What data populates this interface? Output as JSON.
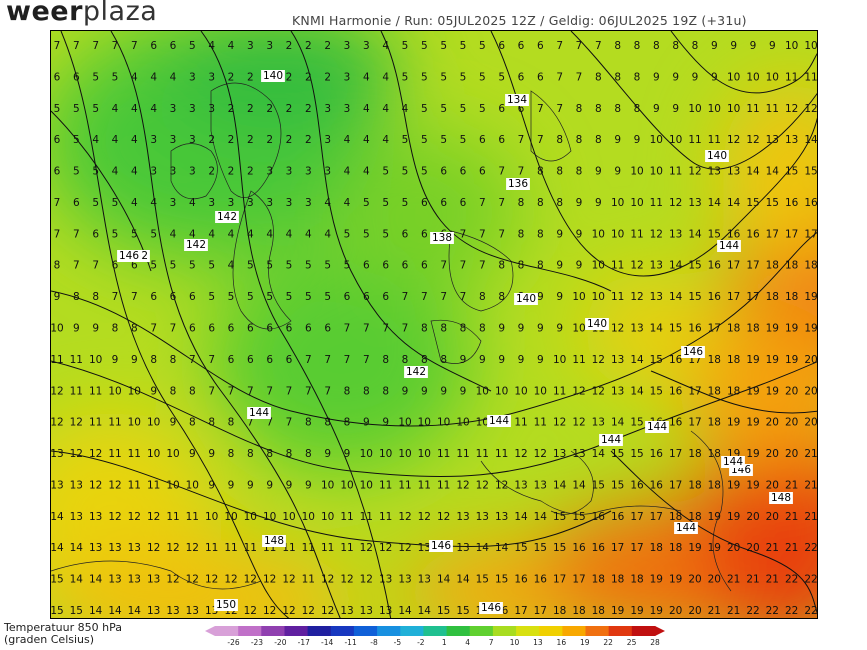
{
  "header": {
    "brand_bold": "weer",
    "brand_light": "plaza",
    "run_info": "KNMI Harmonie / Run: 05JUL2025 12Z / Geldig: 06JUL2025 19Z (+31u)"
  },
  "legend": {
    "line1": "Temperatuur 850 hPa",
    "line2": "(graden Celsius)",
    "ticks": [
      "-26",
      "-23",
      "-20",
      "-17",
      "-14",
      "-11",
      "-8",
      "-5",
      "-2",
      "1",
      "4",
      "7",
      "10",
      "13",
      "16",
      "19",
      "22",
      "25",
      "28"
    ],
    "colors": [
      "#d8a0d8",
      "#c070c8",
      "#9040b0",
      "#6020a0",
      "#2020a0",
      "#1838c0",
      "#1060d8",
      "#1890e0",
      "#20b0d8",
      "#20c090",
      "#30c040",
      "#60d030",
      "#a8dc20",
      "#d8e010",
      "#f0d000",
      "#f8a800",
      "#f07010",
      "#e03810",
      "#c01010"
    ]
  },
  "contours": {
    "labels": [
      "140",
      "134",
      "136",
      "138",
      "140",
      "140",
      "142",
      "142",
      "142",
      "146",
      "144",
      "144",
      "142",
      "144",
      "144",
      "146",
      "148",
      "146",
      "146",
      "150",
      "144",
      "144",
      "140",
      "144",
      "146",
      "148"
    ]
  },
  "temperature_field": {
    "rows": [
      "7 7 7 7 7 6 6 5 4 4 3 3 2 2 2 3 3 4 5 5 5 5 5 6 6 6 7 7 7 8 8 8 8 8 9 9 9 9 10 10",
      "6 6 5 5 4 4 4 3 3 2 2 2 2 2 2 3 4 4 5 5 5 5 5 5 6 6 7 7 8 8 8 9 9 9 9 10 10 10 11 11",
      "5 5 5 4 4 4 3 3 3 2 2 2 2 2 3 3 4 4 4 5 5 5 5 6 6 7 7 8 8 8 8 9 9 10 10 10 11 11 12 12",
      "6 5 4 4 4 3 3 3 2 2 2 2 2 2 3 4 4 4 5 5 5 5 6 6 7 7 8 8 8 9 9 10 10 11 11 12 12 13 13 14",
      "6 5 5 4 4 3 3 3 2 2 2 3 3 3 3 4 4 5 5 5 6 6 6 7 7 8 8 8 9 9 10 10 11 12 13 13 14 14 15 15",
      "7 6 5 5 4 4 3 4 3 3 3 3 3 3 4 4 5 5 5 6 6 6 7 7 8 8 8 9 9 10 10 11 12 13 14 14 15 15 16 16",
      "7 7 6 5 5 5 4 4 4 4 4 4 4 4 4 5 5 5 6 6 6 7 7 7 8 8 9 9 10 10 11 12 13 14 15 16 16 17 17 17",
      "8 7 7 6 6 5 5 5 5 4 5 5 5 5 5 5 6 6 6 6 7 7 7 8 8 8 9 9 10 11 12 13 14 15 16 17 17 18 18 18",
      "9 8 8 7 7 6 6 6 5 5 5 5 5 5 5 6 6 6 7 7 7 7 8 8 8 9 9 10 10 11 12 13 14 15 16 17 17 18 18 19",
      "10 9 9 8 8 7 7 6 6 6 6 6 6 6 6 7 7 7 7 8 8 8 8 9 9 9 9 10 11 12 13 14 15 16 17 18 18 19 19 19",
      "11 11 10 9 9 8 8 7 7 6 6 6 6 7 7 7 7 8 8 8 8 9 9 9 9 9 10 11 12 13 14 15 16 17 18 18 19 19 19 20",
      "12 11 11 10 10 9 8 8 7 7 7 7 7 7 7 8 8 8 9 9 9 9 10 10 10 10 11 12 12 13 14 15 16 17 18 18 19 19 20 20",
      "12 12 11 11 10 10 9 8 8 8 7 7 7 8 8 8 9 9 10 10 10 10 10 11 11 11 12 12 13 14 15 16 16 17 18 19 19 20 20 20",
      "13 12 12 11 11 10 10 9 9 8 8 8 8 8 9 9 10 10 10 10 11 11 11 11 12 12 13 13 14 15 15 16 17 18 18 19 19 20 20 21",
      "13 13 12 12 11 11 10 10 9 9 9 9 9 9 10 10 10 11 11 11 11 12 12 12 13 13 14 14 15 15 16 16 17 18 18 19 19 20 21 21",
      "14 13 13 12 12 12 11 11 10 10 10 10 10 10 10 11 11 11 12 12 12 13 13 13 14 14 15 15 16 16 17 17 18 18 19 19 20 20 21 21",
      "14 14 13 13 13 12 12 12 11 11 11 11 11 11 11 11 12 12 12 13 13 13 14 14 15 15 15 16 16 17 17 18 18 19 19 20 20 21 21 22",
      "15 14 14 13 13 13 12 12 12 12 12 12 12 11 12 12 12 13 13 13 14 14 15 15 16 16 17 17 18 18 18 19 19 20 20 21 21 21 22 22",
      "15 15 14 14 14 13 13 13 13 12 12 12 12 12 12 13 13 13 14 14 15 15 16 16 17 17 18 18 18 19 19 19 20 20 21 21 22 22 22 22"
    ]
  }
}
